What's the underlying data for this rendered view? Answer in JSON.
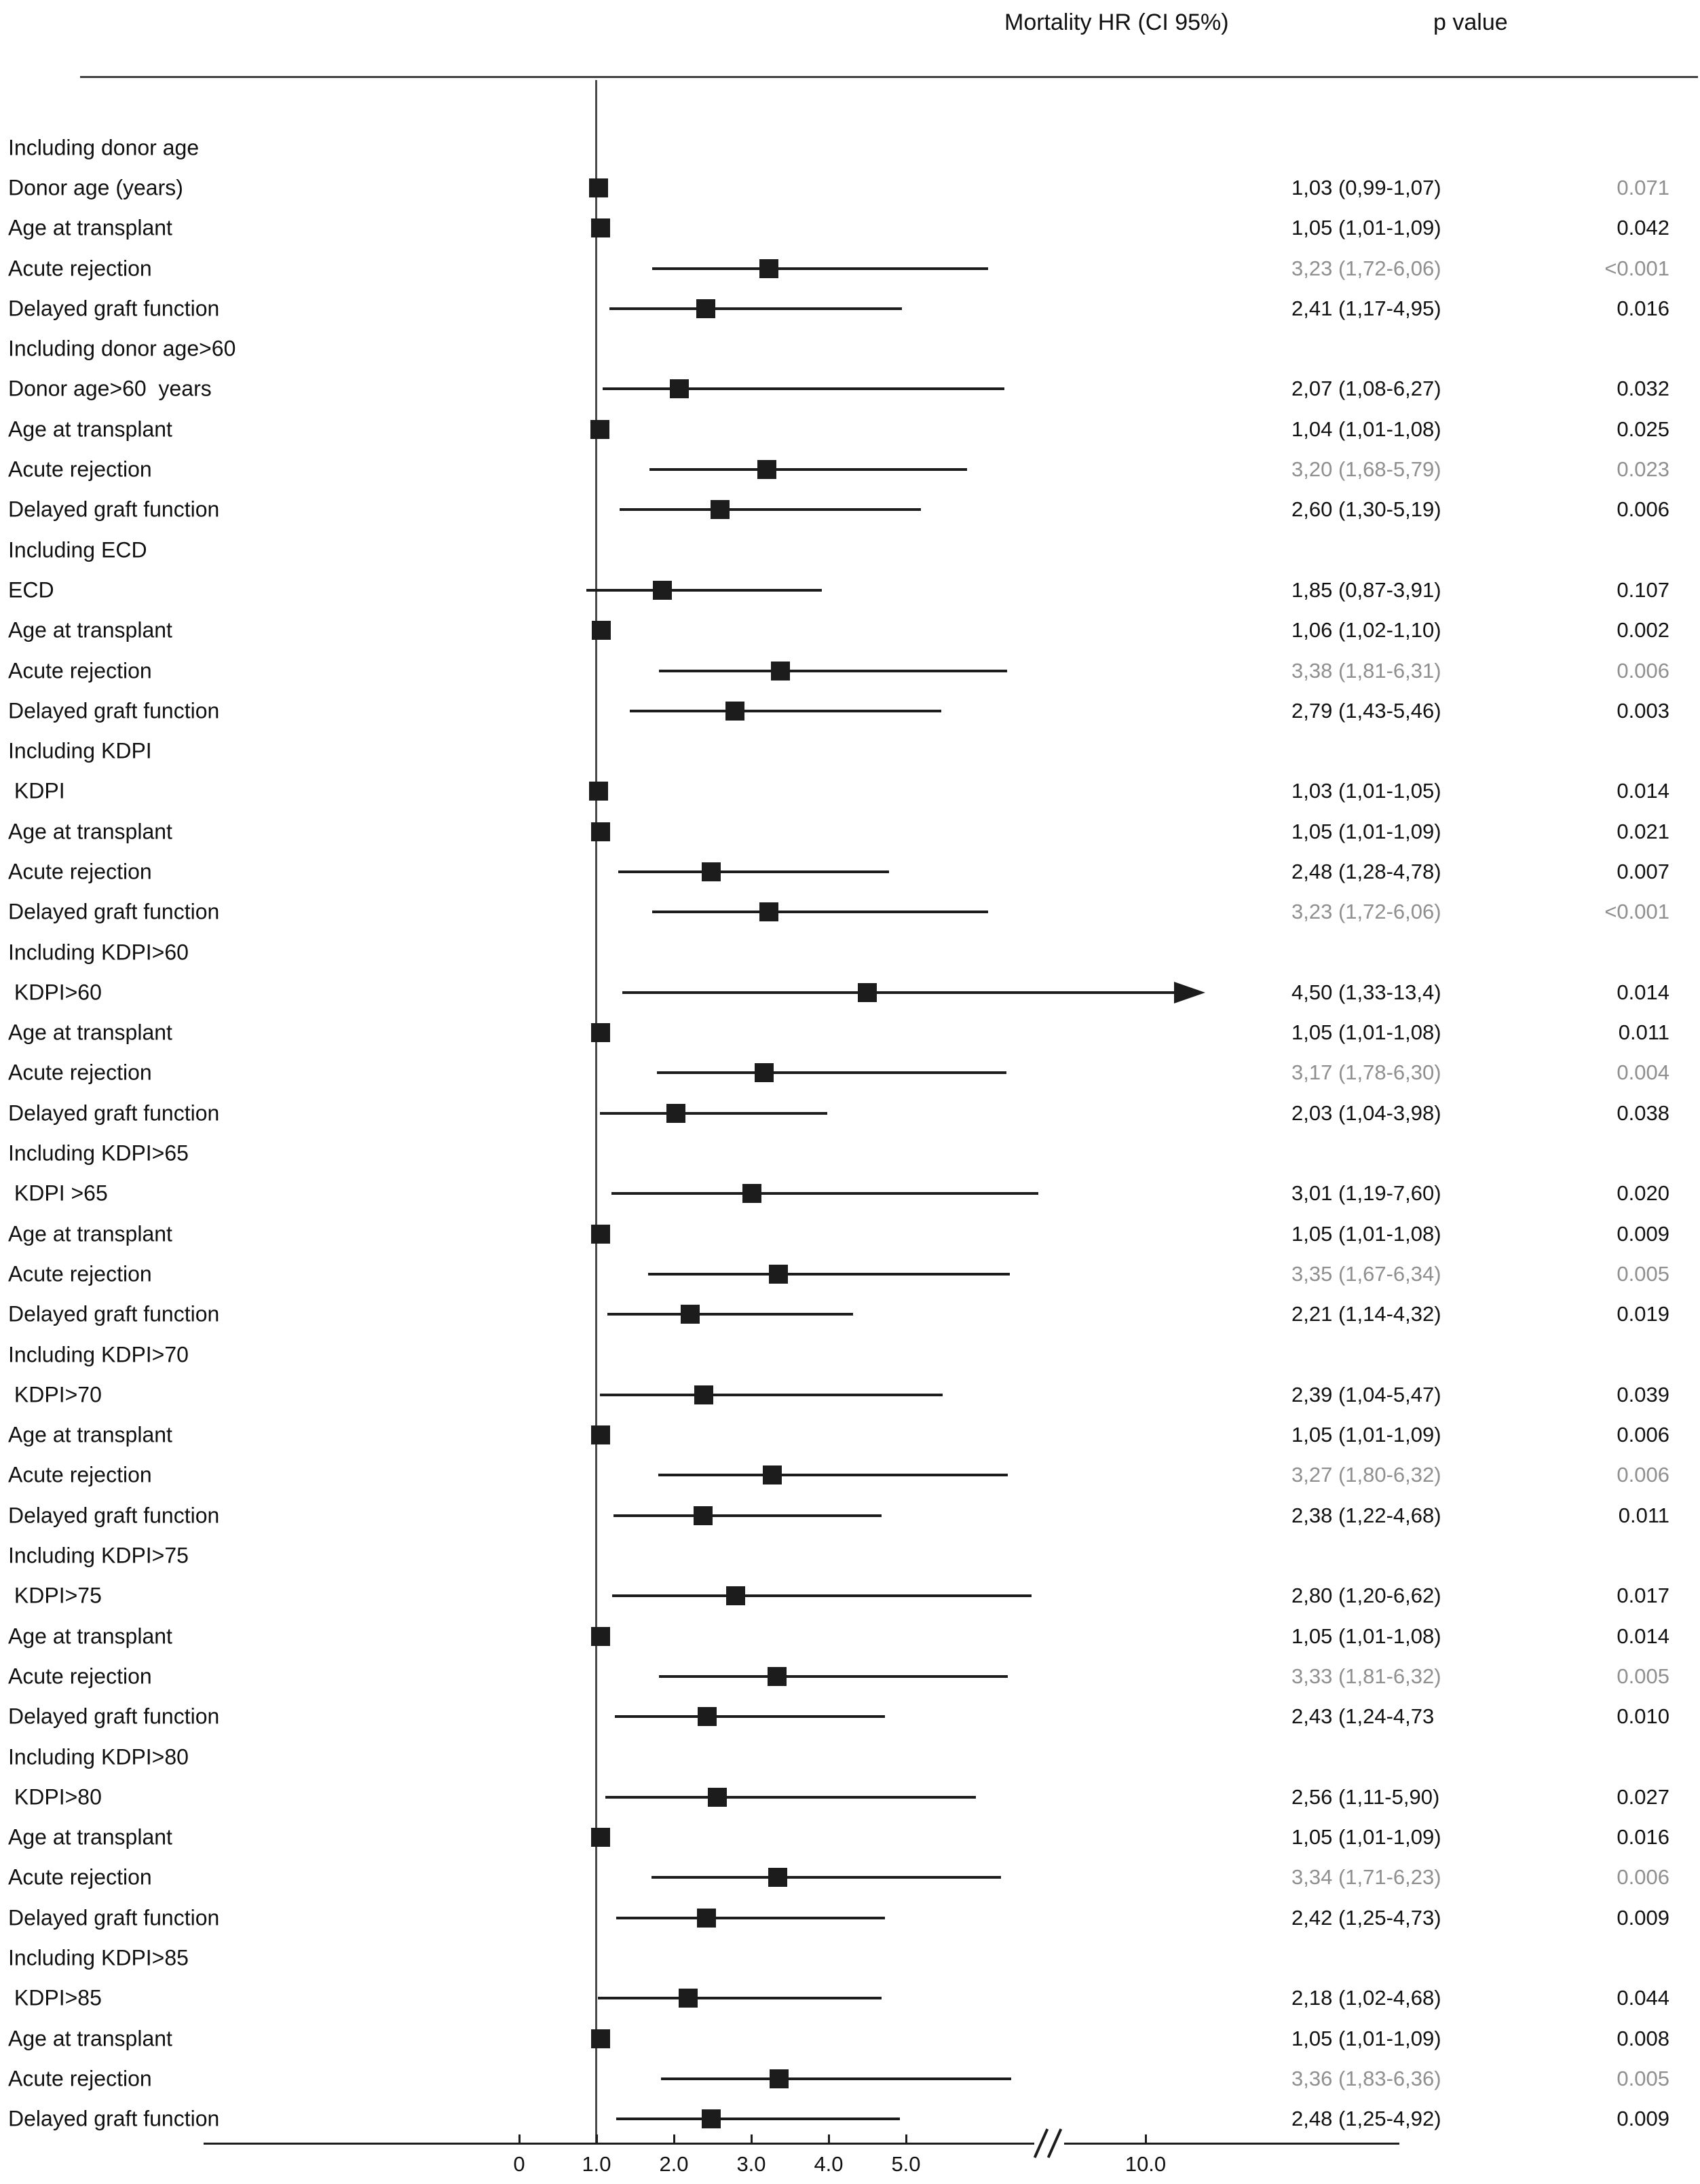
{
  "header": {
    "hr_col": "Mortality HR (CI 95%)",
    "p_col": "p value"
  },
  "chart_data": {
    "type": "forest",
    "title": "",
    "xlabel": "",
    "reference_line": 1.0,
    "colors": {
      "marker": "#1c1c1c",
      "text": "#111111",
      "gray_text": "#8f8f8f"
    },
    "axis": {
      "ticks": [
        {
          "label": "0",
          "value": 0
        },
        {
          "label": "1.0",
          "value": 1
        },
        {
          "label": "2.0",
          "value": 2
        },
        {
          "label": "3.0",
          "value": 3
        },
        {
          "label": "4.0",
          "value": 4
        },
        {
          "label": "5.0",
          "value": 5
        },
        {
          "label": "10.0",
          "value": 10
        }
      ],
      "break_between": [
        5,
        10
      ],
      "grid": false
    },
    "groups": [
      {
        "label": "Including donor age",
        "rows": [
          {
            "label": "Donor age (years)",
            "hr": 1.03,
            "lo": 0.99,
            "hi": 1.07,
            "hr_text": "1,03 (0,99-1,07)",
            "p_text": "0.071",
            "hr_gray": false,
            "p_gray": true,
            "arrow": false
          },
          {
            "label": "Age at transplant",
            "hr": 1.05,
            "lo": 1.01,
            "hi": 1.09,
            "hr_text": "1,05 (1,01-1,09)",
            "p_text": "0.042",
            "hr_gray": false,
            "p_gray": false,
            "arrow": false
          },
          {
            "label": "Acute rejection",
            "hr": 3.23,
            "lo": 1.72,
            "hi": 6.06,
            "hr_text": "3,23 (1,72-6,06)",
            "p_text": "<0.001",
            "hr_gray": true,
            "p_gray": true,
            "arrow": false
          },
          {
            "label": "Delayed graft function",
            "hr": 2.41,
            "lo": 1.17,
            "hi": 4.95,
            "hr_text": "2,41 (1,17-4,95)",
            "p_text": "0.016",
            "hr_gray": false,
            "p_gray": false,
            "arrow": false
          }
        ]
      },
      {
        "label": "Including donor age>60",
        "rows": [
          {
            "label": "Donor age>60  years",
            "hr": 2.07,
            "lo": 1.08,
            "hi": 6.27,
            "hr_text": "2,07 (1,08-6,27)",
            "p_text": "0.032",
            "hr_gray": false,
            "p_gray": false,
            "arrow": false
          },
          {
            "label": "Age at transplant",
            "hr": 1.04,
            "lo": 1.01,
            "hi": 1.08,
            "hr_text": "1,04 (1,01-1,08)",
            "p_text": "0.025",
            "hr_gray": false,
            "p_gray": false,
            "arrow": false
          },
          {
            "label": "Acute rejection",
            "hr": 3.2,
            "lo": 1.68,
            "hi": 5.79,
            "hr_text": "3,20 (1,68-5,79)",
            "p_text": "0.023",
            "hr_gray": true,
            "p_gray": true,
            "arrow": false
          },
          {
            "label": "Delayed graft function",
            "hr": 2.6,
            "lo": 1.3,
            "hi": 5.19,
            "hr_text": "2,60 (1,30-5,19)",
            "p_text": "0.006",
            "hr_gray": false,
            "p_gray": false,
            "arrow": false
          }
        ]
      },
      {
        "label": "Including ECD",
        "rows": [
          {
            "label": "ECD",
            "hr": 1.85,
            "lo": 0.87,
            "hi": 3.91,
            "hr_text": "1,85 (0,87-3,91)",
            "p_text": "0.107",
            "hr_gray": false,
            "p_gray": false,
            "arrow": false
          },
          {
            "label": "Age at transplant",
            "hr": 1.06,
            "lo": 1.02,
            "hi": 1.1,
            "hr_text": "1,06 (1,02-1,10)",
            "p_text": "0.002",
            "hr_gray": false,
            "p_gray": false,
            "arrow": false
          },
          {
            "label": "Acute rejection",
            "hr": 3.38,
            "lo": 1.81,
            "hi": 6.31,
            "hr_text": "3,38 (1,81-6,31)",
            "p_text": "0.006",
            "hr_gray": true,
            "p_gray": true,
            "arrow": false
          },
          {
            "label": "Delayed graft function",
            "hr": 2.79,
            "lo": 1.43,
            "hi": 5.46,
            "hr_text": "2,79 (1,43-5,46)",
            "p_text": "0.003",
            "hr_gray": false,
            "p_gray": false,
            "arrow": false
          }
        ]
      },
      {
        "label": "Including KDPI",
        "rows": [
          {
            "label": " KDPI",
            "hr": 1.03,
            "lo": 1.01,
            "hi": 1.05,
            "hr_text": "1,03 (1,01-1,05)",
            "p_text": "0.014",
            "hr_gray": false,
            "p_gray": false,
            "arrow": false
          },
          {
            "label": "Age at transplant",
            "hr": 1.05,
            "lo": 1.01,
            "hi": 1.09,
            "hr_text": "1,05 (1,01-1,09)",
            "p_text": "0.021",
            "hr_gray": false,
            "p_gray": false,
            "arrow": false
          },
          {
            "label": "Acute rejection",
            "hr": 2.48,
            "lo": 1.28,
            "hi": 4.78,
            "hr_text": "2,48 (1,28-4,78)",
            "p_text": "0.007",
            "hr_gray": false,
            "p_gray": false,
            "arrow": false
          },
          {
            "label": "Delayed graft function",
            "hr": 3.23,
            "lo": 1.72,
            "hi": 6.06,
            "hr_text": "3,23 (1,72-6,06)",
            "p_text": "<0.001",
            "hr_gray": true,
            "p_gray": true,
            "arrow": false
          }
        ]
      },
      {
        "label": "Including KDPI>60",
        "rows": [
          {
            "label": " KDPI>60",
            "hr": 4.5,
            "lo": 1.33,
            "hi": 13.4,
            "hr_text": "4,50 (1,33-13,4)",
            "p_text": "0.014",
            "hr_gray": false,
            "p_gray": false,
            "arrow": true
          },
          {
            "label": "Age at transplant",
            "hr": 1.05,
            "lo": 1.01,
            "hi": 1.08,
            "hr_text": "1,05 (1,01-1,08)",
            "p_text": "0.011",
            "hr_gray": false,
            "p_gray": false,
            "arrow": false
          },
          {
            "label": "Acute rejection",
            "hr": 3.17,
            "lo": 1.78,
            "hi": 6.3,
            "hr_text": "3,17 (1,78-6,30)",
            "p_text": "0.004",
            "hr_gray": true,
            "p_gray": true,
            "arrow": false
          },
          {
            "label": "Delayed graft function",
            "hr": 2.03,
            "lo": 1.04,
            "hi": 3.98,
            "hr_text": "2,03 (1,04-3,98)",
            "p_text": "0.038",
            "hr_gray": false,
            "p_gray": false,
            "arrow": false
          }
        ]
      },
      {
        "label": "Including KDPI>65",
        "rows": [
          {
            "label": " KDPI >65",
            "hr": 3.01,
            "lo": 1.19,
            "hi": 7.6,
            "hr_text": "3,01 (1,19-7,60)",
            "p_text": "0.020",
            "hr_gray": false,
            "p_gray": false,
            "arrow": false
          },
          {
            "label": "Age at transplant",
            "hr": 1.05,
            "lo": 1.01,
            "hi": 1.08,
            "hr_text": "1,05 (1,01-1,08)",
            "p_text": "0.009",
            "hr_gray": false,
            "p_gray": false,
            "arrow": false
          },
          {
            "label": "Acute rejection",
            "hr": 3.35,
            "lo": 1.67,
            "hi": 6.34,
            "hr_text": "3,35 (1,67-6,34)",
            "p_text": "0.005",
            "hr_gray": true,
            "p_gray": true,
            "arrow": false
          },
          {
            "label": "Delayed graft function",
            "hr": 2.21,
            "lo": 1.14,
            "hi": 4.32,
            "hr_text": "2,21 (1,14-4,32)",
            "p_text": "0.019",
            "hr_gray": false,
            "p_gray": false,
            "arrow": false
          }
        ]
      },
      {
        "label": "Including KDPI>70",
        "rows": [
          {
            "label": " KDPI>70",
            "hr": 2.39,
            "lo": 1.04,
            "hi": 5.47,
            "hr_text": "2,39 (1,04-5,47)",
            "p_text": "0.039",
            "hr_gray": false,
            "p_gray": false,
            "arrow": false
          },
          {
            "label": "Age at transplant",
            "hr": 1.05,
            "lo": 1.01,
            "hi": 1.09,
            "hr_text": "1,05 (1,01-1,09)",
            "p_text": "0.006",
            "hr_gray": false,
            "p_gray": false,
            "arrow": false
          },
          {
            "label": "Acute rejection",
            "hr": 3.27,
            "lo": 1.8,
            "hi": 6.32,
            "hr_text": "3,27 (1,80-6,32)",
            "p_text": "0.006",
            "hr_gray": true,
            "p_gray": true,
            "arrow": false
          },
          {
            "label": "Delayed graft function",
            "hr": 2.38,
            "lo": 1.22,
            "hi": 4.68,
            "hr_text": "2,38 (1,22-4,68)",
            "p_text": "0.011",
            "hr_gray": false,
            "p_gray": false,
            "arrow": false
          }
        ]
      },
      {
        "label": "Including KDPI>75",
        "rows": [
          {
            "label": " KDPI>75",
            "hr": 2.8,
            "lo": 1.2,
            "hi": 6.62,
            "hr_text": "2,80 (1,20-6,62)",
            "p_text": "0.017",
            "hr_gray": false,
            "p_gray": false,
            "arrow": false
          },
          {
            "label": "Age at transplant",
            "hr": 1.05,
            "lo": 1.01,
            "hi": 1.08,
            "hr_text": "1,05 (1,01-1,08)",
            "p_text": "0.014",
            "hr_gray": false,
            "p_gray": false,
            "arrow": false
          },
          {
            "label": "Acute rejection",
            "hr": 3.33,
            "lo": 1.81,
            "hi": 6.32,
            "hr_text": "3,33 (1,81-6,32)",
            "p_text": "0.005",
            "hr_gray": true,
            "p_gray": true,
            "arrow": false
          },
          {
            "label": "Delayed graft function",
            "hr": 2.43,
            "lo": 1.24,
            "hi": 4.73,
            "hr_text": "2,43 (1,24-4,73",
            "p_text": "0.010",
            "hr_gray": false,
            "p_gray": false,
            "arrow": false
          }
        ]
      },
      {
        "label": "Including KDPI>80",
        "rows": [
          {
            "label": " KDPI>80",
            "hr": 2.56,
            "lo": 1.11,
            "hi": 5.9,
            "hr_text": "2,56 (1,11-5,90)",
            "p_text": "0.027",
            "hr_gray": false,
            "p_gray": false,
            "arrow": false
          },
          {
            "label": "Age at transplant",
            "hr": 1.05,
            "lo": 1.01,
            "hi": 1.09,
            "hr_text": "1,05 (1,01-1,09)",
            "p_text": "0.016",
            "hr_gray": false,
            "p_gray": false,
            "arrow": false
          },
          {
            "label": "Acute rejection",
            "hr": 3.34,
            "lo": 1.71,
            "hi": 6.23,
            "hr_text": "3,34 (1,71-6,23)",
            "p_text": "0.006",
            "hr_gray": true,
            "p_gray": true,
            "arrow": false
          },
          {
            "label": "Delayed graft function",
            "hr": 2.42,
            "lo": 1.25,
            "hi": 4.73,
            "hr_text": "2,42 (1,25-4,73)",
            "p_text": "0.009",
            "hr_gray": false,
            "p_gray": false,
            "arrow": false
          }
        ]
      },
      {
        "label": "Including KDPI>85",
        "rows": [
          {
            "label": " KDPI>85",
            "hr": 2.18,
            "lo": 1.02,
            "hi": 4.68,
            "hr_text": "2,18 (1,02-4,68)",
            "p_text": "0.044",
            "hr_gray": false,
            "p_gray": false,
            "arrow": false
          },
          {
            "label": "Age at transplant",
            "hr": 1.05,
            "lo": 1.01,
            "hi": 1.09,
            "hr_text": "1,05 (1,01-1,09)",
            "p_text": "0.008",
            "hr_gray": false,
            "p_gray": false,
            "arrow": false
          },
          {
            "label": "Acute rejection",
            "hr": 3.36,
            "lo": 1.83,
            "hi": 6.36,
            "hr_text": "3,36 (1,83-6,36)",
            "p_text": "0.005",
            "hr_gray": true,
            "p_gray": true,
            "arrow": false
          },
          {
            "label": "Delayed graft function",
            "hr": 2.48,
            "lo": 1.25,
            "hi": 4.92,
            "hr_text": "2,48 (1,25-4,92)",
            "p_text": "0.009",
            "hr_gray": false,
            "p_gray": false,
            "arrow": false
          }
        ]
      }
    ]
  }
}
